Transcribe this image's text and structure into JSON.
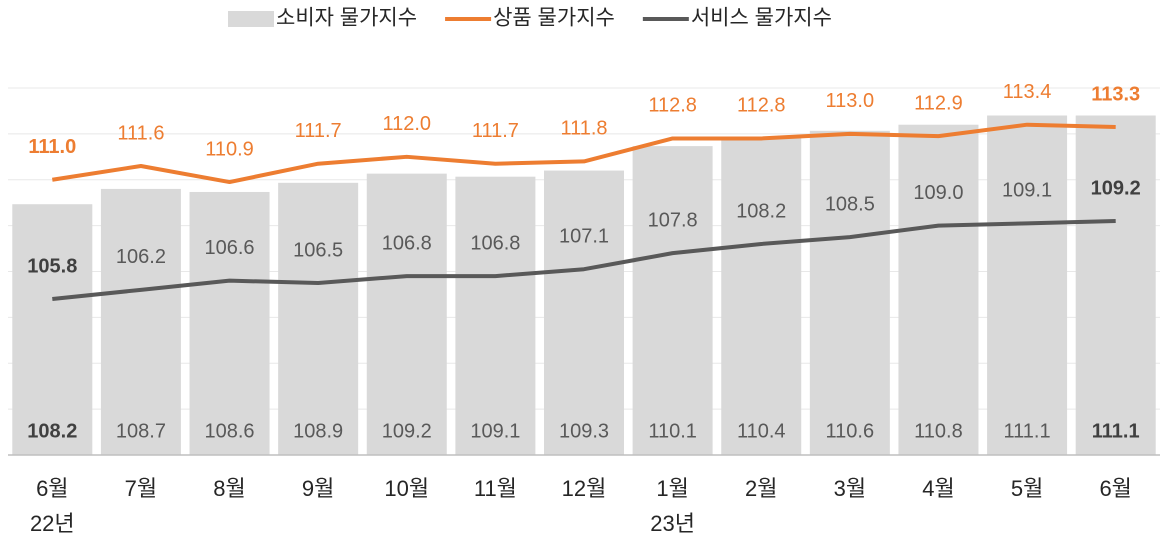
{
  "chart_data": {
    "type": "bar-line",
    "categories": [
      "6월",
      "7월",
      "8월",
      "9월",
      "10월",
      "11월",
      "12월",
      "1월",
      "2월",
      "3월",
      "4월",
      "5월",
      "6월"
    ],
    "x_groups": [
      {
        "label": "22년",
        "index": 0
      },
      {
        "label": "23년",
        "index": 7
      }
    ],
    "series": [
      {
        "name": "소비자 물가지수",
        "type": "bar",
        "color": "#d9d9d9",
        "values": [
          108.2,
          108.7,
          108.6,
          108.9,
          109.2,
          109.1,
          109.3,
          110.1,
          110.4,
          110.6,
          110.8,
          111.1,
          111.1
        ],
        "value_labels": [
          "108.2",
          "108.7",
          "108.6",
          "108.9",
          "109.2",
          "109.1",
          "109.3",
          "110.1",
          "110.4",
          "110.6",
          "110.8",
          "111.1",
          "111.1"
        ]
      },
      {
        "name": "상품 물가지수",
        "type": "line",
        "axis": "y2",
        "color": "#ed7d31",
        "values": [
          111.0,
          111.6,
          110.9,
          111.7,
          112.0,
          111.7,
          111.8,
          112.8,
          112.8,
          113.0,
          112.9,
          113.4,
          113.3
        ],
        "value_labels": [
          "111.0",
          "111.6",
          "110.9",
          "111.7",
          "112.0",
          "111.7",
          "111.8",
          "112.8",
          "112.8",
          "113.0",
          "112.9",
          "113.4",
          "113.3"
        ]
      },
      {
        "name": "서비스  물가지수",
        "type": "line",
        "axis": "y2",
        "color": "#595959",
        "values": [
          105.8,
          106.2,
          106.6,
          106.5,
          106.8,
          106.8,
          107.1,
          107.8,
          108.2,
          108.5,
          109.0,
          109.1,
          109.2
        ],
        "value_labels": [
          "105.8",
          "106.2",
          "106.6",
          "106.5",
          "106.8",
          "106.8",
          "107.1",
          "107.8",
          "108.2",
          "108.5",
          "109.0",
          "109.1",
          "109.2"
        ]
      }
    ],
    "ylim": [
      100,
      112
    ],
    "yticks": [
      100,
      101.5,
      103,
      104.5,
      106,
      107.5,
      109,
      110.5,
      112
    ],
    "y2lim": [
      99,
      115
    ],
    "grid": true
  }
}
